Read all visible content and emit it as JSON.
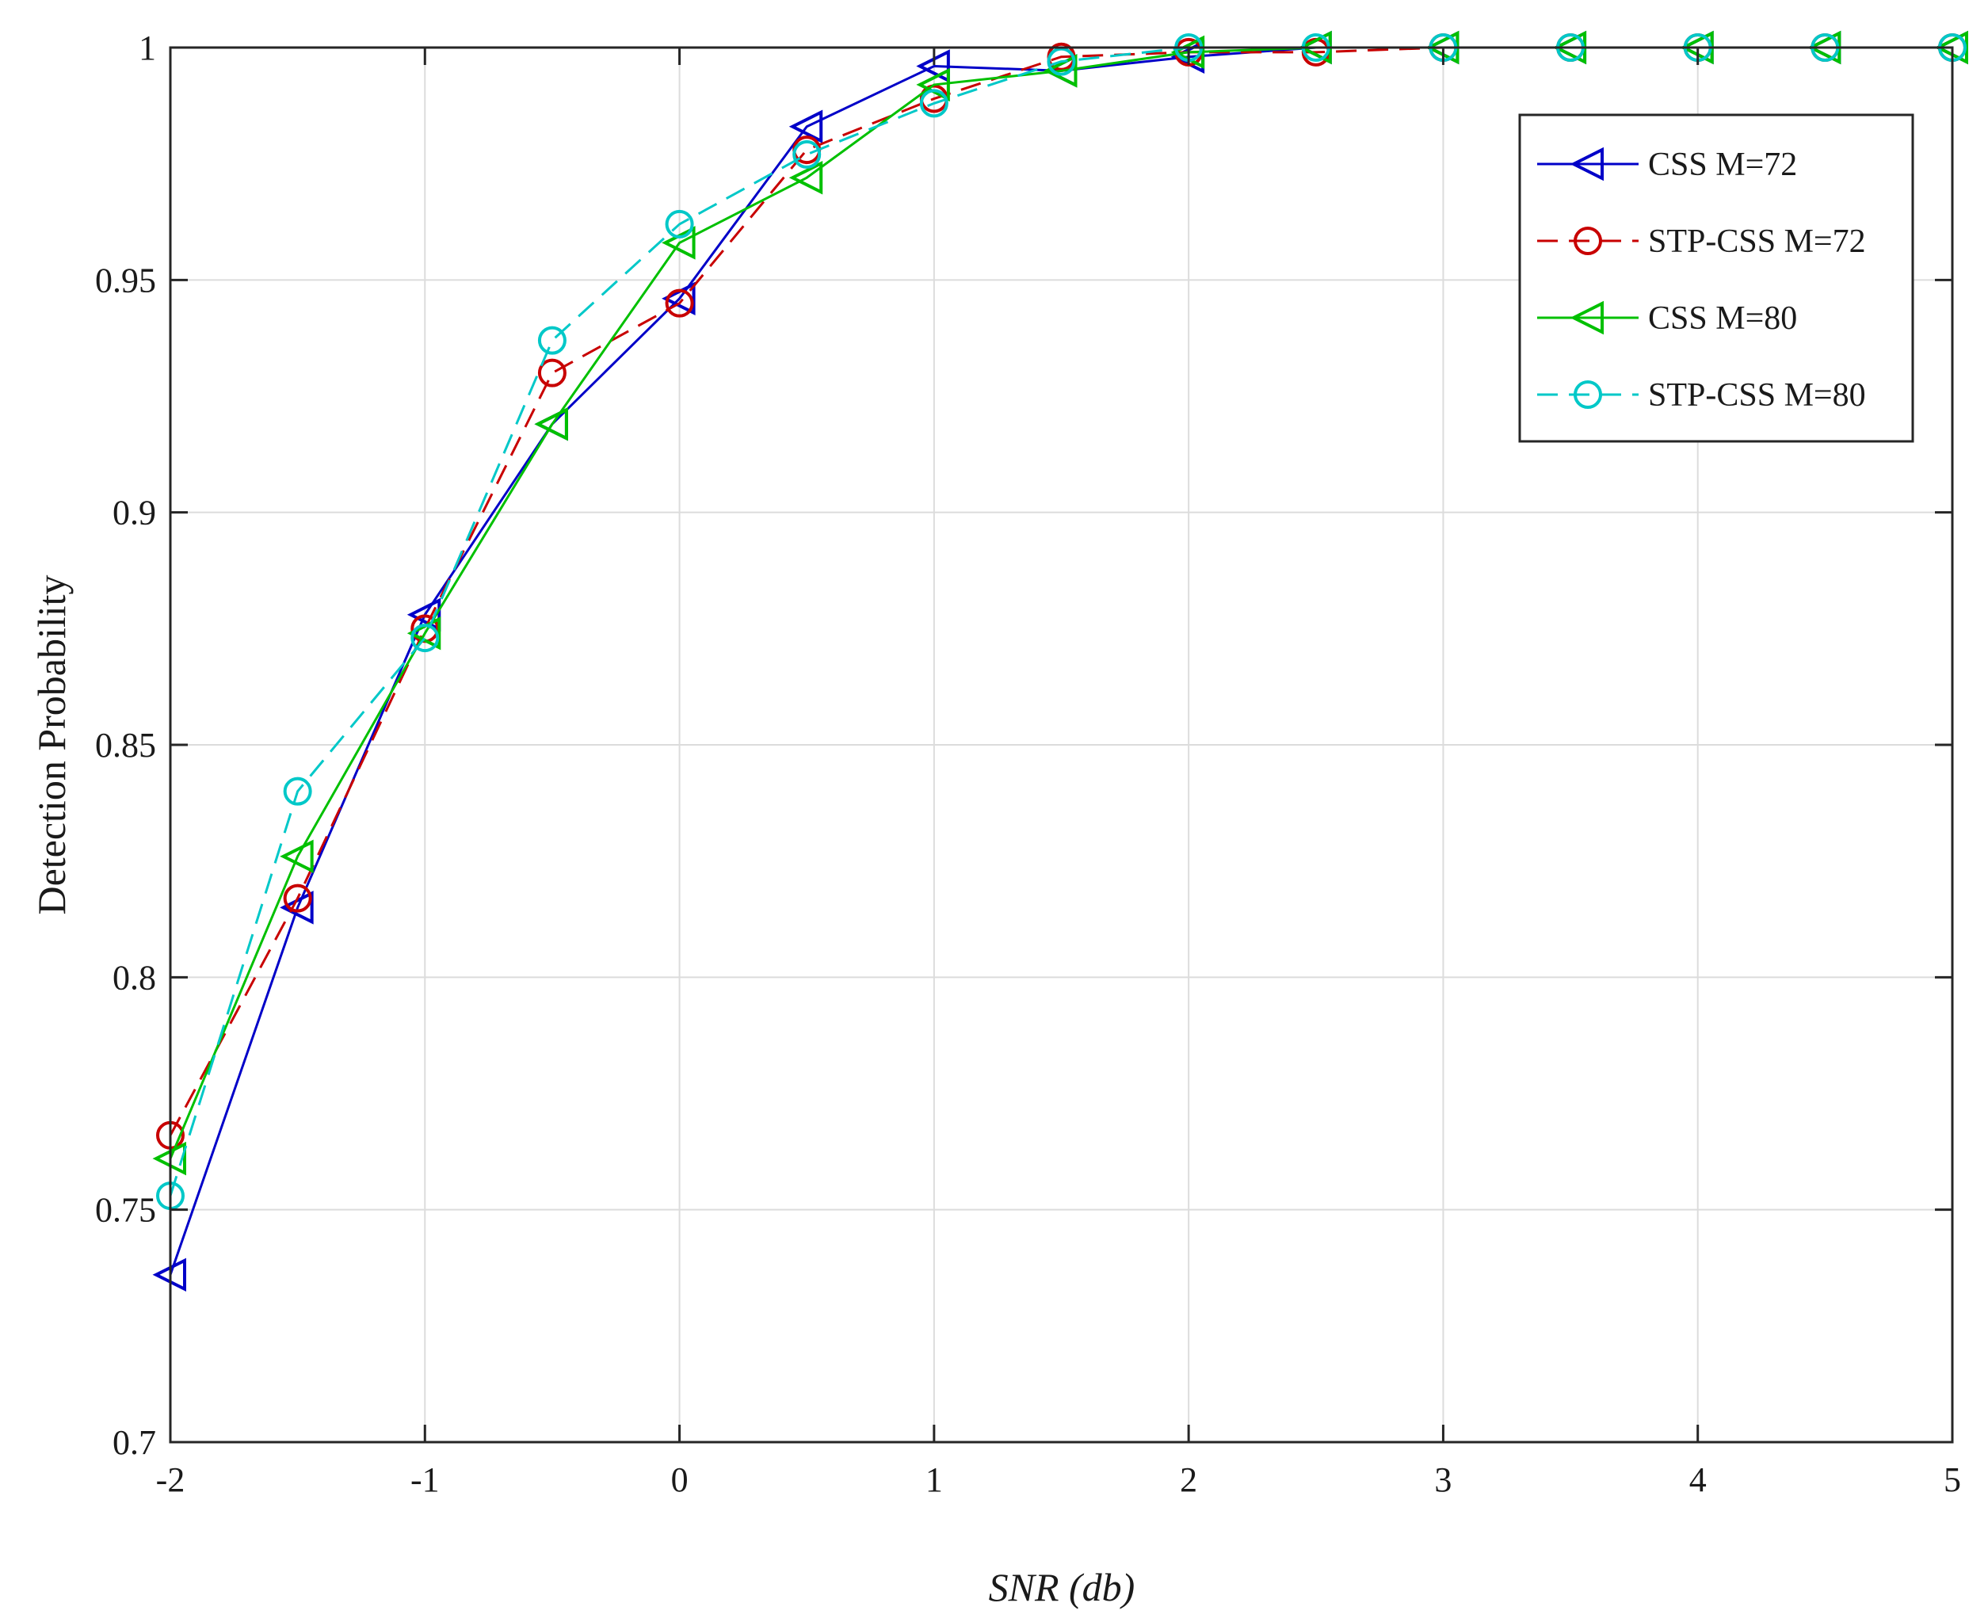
{
  "chart_data": {
    "type": "line",
    "title": "",
    "xlabel": "SNR  (db)",
    "ylabel": "Detection Probability",
    "xlim": [
      -2,
      5
    ],
    "ylim": [
      0.7,
      1
    ],
    "xticks": [
      -2,
      -1,
      0,
      1,
      2,
      3,
      4,
      5
    ],
    "xtick_labels": [
      "-2",
      "-1",
      "0",
      "1",
      "2",
      "3",
      "4",
      "5"
    ],
    "yticks": [
      0.7,
      0.75,
      0.8,
      0.85,
      0.9,
      0.95,
      1
    ],
    "ytick_labels": [
      "0.7",
      "0.75",
      "0.8",
      "0.85",
      "0.9",
      "0.95",
      "1"
    ],
    "grid": true,
    "legend_position": "top-right",
    "x": [
      -2,
      -1.5,
      -1,
      -0.5,
      0,
      0.5,
      1,
      1.5,
      2,
      2.5,
      3,
      3.5,
      4,
      4.5,
      5
    ],
    "series": [
      {
        "name": "CSS  M=72",
        "color": "#0000c8",
        "line_style": "solid",
        "marker": "triangle-left",
        "values": [
          0.736,
          0.815,
          0.878,
          0.919,
          0.946,
          0.983,
          0.996,
          0.995,
          0.998,
          1.0,
          1.0,
          1.0,
          1.0,
          1.0,
          1.0
        ]
      },
      {
        "name": "STP-CSS  M=72",
        "color": "#c80000",
        "line_style": "dashed",
        "marker": "circle",
        "values": [
          0.766,
          0.817,
          0.875,
          0.93,
          0.945,
          0.978,
          0.989,
          0.998,
          0.999,
          0.999,
          1.0,
          1.0,
          1.0,
          1.0,
          1.0
        ]
      },
      {
        "name": "CSS  M=80",
        "color": "#00c000",
        "line_style": "solid",
        "marker": "triangle-left",
        "values": [
          0.761,
          0.826,
          0.874,
          0.919,
          0.958,
          0.972,
          0.992,
          0.995,
          0.999,
          1.0,
          1.0,
          1.0,
          1.0,
          1.0,
          1.0
        ]
      },
      {
        "name": "STP-CSS  M=80",
        "color": "#00c8c8",
        "line_style": "dashed",
        "marker": "circle",
        "values": [
          0.753,
          0.84,
          0.873,
          0.937,
          0.962,
          0.977,
          0.988,
          0.997,
          1.0,
          1.0,
          1.0,
          1.0,
          1.0,
          1.0,
          1.0
        ]
      }
    ]
  }
}
